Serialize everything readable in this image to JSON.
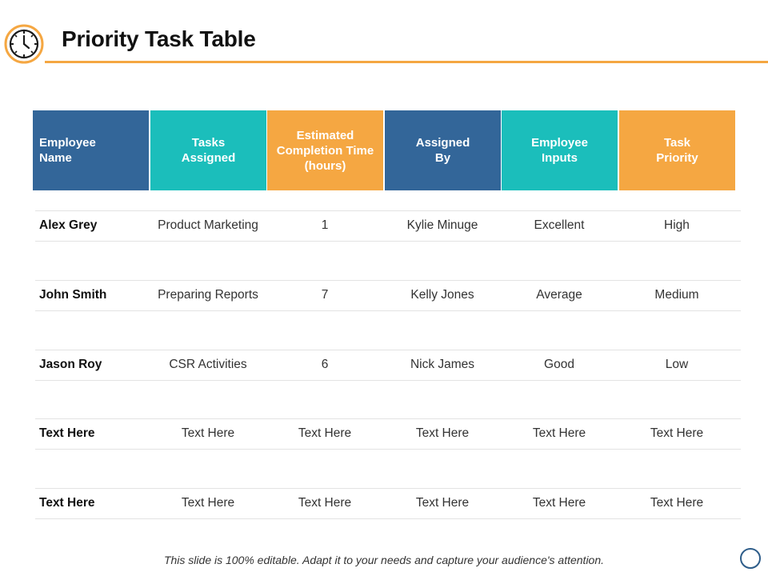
{
  "title": "Priority Task Table",
  "footer_note": "This slide is 100% editable. Adapt it to your needs and capture your audience's attention.",
  "colors": {
    "accent_orange": "#F5A742",
    "navy": "#336699",
    "teal": "#1BBEBB",
    "rule": "#F5A742"
  },
  "icons": {
    "header_icon": "clock-icon",
    "corner_icon": "circle-icon"
  },
  "table": {
    "headers": [
      {
        "label": "Employee\nName",
        "color": "#336699"
      },
      {
        "label": "Tasks\nAssigned",
        "color": "#1BBEBB"
      },
      {
        "label": "Estimated\nCompletion Time\n(hours)",
        "color": "#F5A742"
      },
      {
        "label": "Assigned\nBy",
        "color": "#336699"
      },
      {
        "label": "Employee\nInputs",
        "color": "#1BBEBB"
      },
      {
        "label": "Task\nPriority",
        "color": "#F5A742"
      }
    ],
    "rows": [
      [
        "Alex Grey",
        "Product Marketing",
        "1",
        "Kylie Minuge",
        "Excellent",
        "High"
      ],
      [
        "John Smith",
        "Preparing Reports",
        "7",
        "Kelly Jones",
        "Average",
        "Medium"
      ],
      [
        "Jason Roy",
        "CSR Activities",
        "6",
        "Nick James",
        "Good",
        "Low"
      ],
      [
        "Text Here",
        "Text Here",
        "Text Here",
        "Text Here",
        "Text Here",
        "Text Here"
      ],
      [
        "Text Here",
        "Text Here",
        "Text Here",
        "Text Here",
        "Text Here",
        "Text Here"
      ]
    ]
  }
}
